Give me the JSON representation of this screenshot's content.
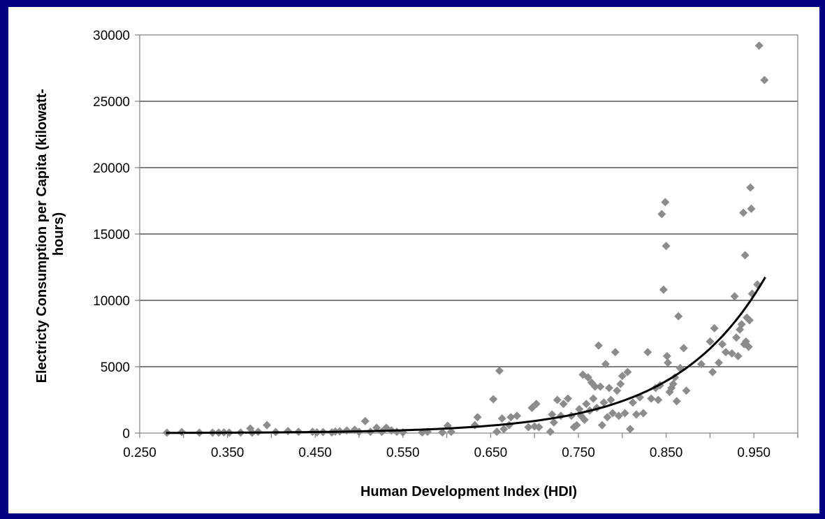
{
  "chart_data": {
    "type": "scatter",
    "title": "",
    "xlabel": "Human Development Index (HDI)",
    "ylabel_lines": [
      "Electricty Consumption per Capita (kilowatt-",
      "hours)"
    ],
    "xlim": [
      0.25,
      1.0
    ],
    "ylim": [
      0,
      30000
    ],
    "x_ticks": [
      0.25,
      0.35,
      0.45,
      0.55,
      0.65,
      0.75,
      0.85,
      0.95
    ],
    "x_tick_labels": [
      "0.250",
      "0.350",
      "0.450",
      "0.550",
      "0.650",
      "0.750",
      "0.850",
      "0.950"
    ],
    "y_ticks": [
      0,
      5000,
      10000,
      15000,
      20000,
      25000,
      30000
    ],
    "y_tick_labels": [
      "0",
      "5000",
      "10000",
      "15000",
      "20000",
      "25000",
      "30000"
    ],
    "grid": "horizontal",
    "legend": "none",
    "marker_color": "#8c8c8c",
    "trend_color": "#000000",
    "series": [
      {
        "marker": "diamond",
        "points": [
          [
            0.281,
            30
          ],
          [
            0.298,
            80
          ],
          [
            0.318,
            30
          ],
          [
            0.333,
            30
          ],
          [
            0.34,
            30
          ],
          [
            0.346,
            50
          ],
          [
            0.352,
            30
          ],
          [
            0.365,
            40
          ],
          [
            0.376,
            350
          ],
          [
            0.378,
            30
          ],
          [
            0.385,
            100
          ],
          [
            0.395,
            600
          ],
          [
            0.405,
            80
          ],
          [
            0.419,
            150
          ],
          [
            0.431,
            100
          ],
          [
            0.447,
            100
          ],
          [
            0.452,
            50
          ],
          [
            0.459,
            80
          ],
          [
            0.469,
            50
          ],
          [
            0.473,
            120
          ],
          [
            0.478,
            130
          ],
          [
            0.486,
            200
          ],
          [
            0.495,
            250
          ],
          [
            0.5,
            100
          ],
          [
            0.507,
            900
          ],
          [
            0.513,
            100
          ],
          [
            0.52,
            400
          ],
          [
            0.526,
            100
          ],
          [
            0.531,
            400
          ],
          [
            0.537,
            200
          ],
          [
            0.543,
            100
          ],
          [
            0.55,
            50
          ],
          [
            0.572,
            50
          ],
          [
            0.578,
            100
          ],
          [
            0.595,
            50
          ],
          [
            0.601,
            550
          ],
          [
            0.605,
            100
          ],
          [
            0.632,
            600
          ],
          [
            0.635,
            1200
          ],
          [
            0.653,
            2550
          ],
          [
            0.657,
            100
          ],
          [
            0.66,
            4700
          ],
          [
            0.663,
            1100
          ],
          [
            0.665,
            300
          ],
          [
            0.671,
            600
          ],
          [
            0.673,
            1200
          ],
          [
            0.68,
            1300
          ],
          [
            0.693,
            450
          ],
          [
            0.697,
            1900
          ],
          [
            0.7,
            500
          ],
          [
            0.702,
            2200
          ],
          [
            0.705,
            450
          ],
          [
            0.718,
            100
          ],
          [
            0.72,
            1400
          ],
          [
            0.722,
            800
          ],
          [
            0.726,
            2500
          ],
          [
            0.73,
            1300
          ],
          [
            0.733,
            2200
          ],
          [
            0.738,
            2600
          ],
          [
            0.742,
            1300
          ],
          [
            0.745,
            450
          ],
          [
            0.748,
            600
          ],
          [
            0.751,
            1800
          ],
          [
            0.753,
            1300
          ],
          [
            0.755,
            4400
          ],
          [
            0.757,
            1000
          ],
          [
            0.759,
            2200
          ],
          [
            0.761,
            4200
          ],
          [
            0.763,
            1700
          ],
          [
            0.765,
            3800
          ],
          [
            0.767,
            2600
          ],
          [
            0.769,
            3500
          ],
          [
            0.771,
            1900
          ],
          [
            0.773,
            6600
          ],
          [
            0.775,
            3500
          ],
          [
            0.777,
            600
          ],
          [
            0.779,
            2300
          ],
          [
            0.781,
            5200
          ],
          [
            0.783,
            1200
          ],
          [
            0.785,
            3400
          ],
          [
            0.787,
            2500
          ],
          [
            0.789,
            1500
          ],
          [
            0.792,
            6100
          ],
          [
            0.794,
            3200
          ],
          [
            0.796,
            1300
          ],
          [
            0.798,
            3700
          ],
          [
            0.8,
            4300
          ],
          [
            0.803,
            1500
          ],
          [
            0.806,
            4600
          ],
          [
            0.809,
            300
          ],
          [
            0.812,
            2300
          ],
          [
            0.816,
            1400
          ],
          [
            0.82,
            2700
          ],
          [
            0.824,
            1500
          ],
          [
            0.829,
            6100
          ],
          [
            0.833,
            2600
          ],
          [
            0.838,
            3400
          ],
          [
            0.841,
            2500
          ],
          [
            0.843,
            3600
          ],
          [
            0.845,
            16500
          ],
          [
            0.847,
            10800
          ],
          [
            0.849,
            17400
          ],
          [
            0.85,
            14100
          ],
          [
            0.851,
            5800
          ],
          [
            0.852,
            5300
          ],
          [
            0.854,
            3100
          ],
          [
            0.856,
            3400
          ],
          [
            0.858,
            3700
          ],
          [
            0.86,
            4200
          ],
          [
            0.862,
            2400
          ],
          [
            0.864,
            8800
          ],
          [
            0.866,
            4900
          ],
          [
            0.87,
            6400
          ],
          [
            0.873,
            3200
          ],
          [
            0.89,
            5200
          ],
          [
            0.9,
            6900
          ],
          [
            0.903,
            4600
          ],
          [
            0.905,
            7900
          ],
          [
            0.91,
            5300
          ],
          [
            0.914,
            6700
          ],
          [
            0.918,
            6100
          ],
          [
            0.925,
            6000
          ],
          [
            0.928,
            10300
          ],
          [
            0.93,
            7200
          ],
          [
            0.932,
            5800
          ],
          [
            0.934,
            7800
          ],
          [
            0.936,
            8200
          ],
          [
            0.938,
            16600
          ],
          [
            0.939,
            6700
          ],
          [
            0.94,
            13400
          ],
          [
            0.941,
            6900
          ],
          [
            0.942,
            8700
          ],
          [
            0.944,
            6500
          ],
          [
            0.945,
            8500
          ],
          [
            0.946,
            18500
          ],
          [
            0.947,
            16900
          ],
          [
            0.948,
            10500
          ],
          [
            0.954,
            11200
          ],
          [
            0.956,
            29200
          ],
          [
            0.962,
            26600
          ]
        ]
      }
    ],
    "trendline": {
      "type": "exponential",
      "x_range": [
        0.28,
        0.963
      ],
      "anchor_points": [
        [
          0.55,
          200
        ],
        [
          0.65,
          600
        ],
        [
          0.75,
          1500
        ],
        [
          0.85,
          4000
        ],
        [
          0.96,
          11000
        ]
      ]
    }
  }
}
